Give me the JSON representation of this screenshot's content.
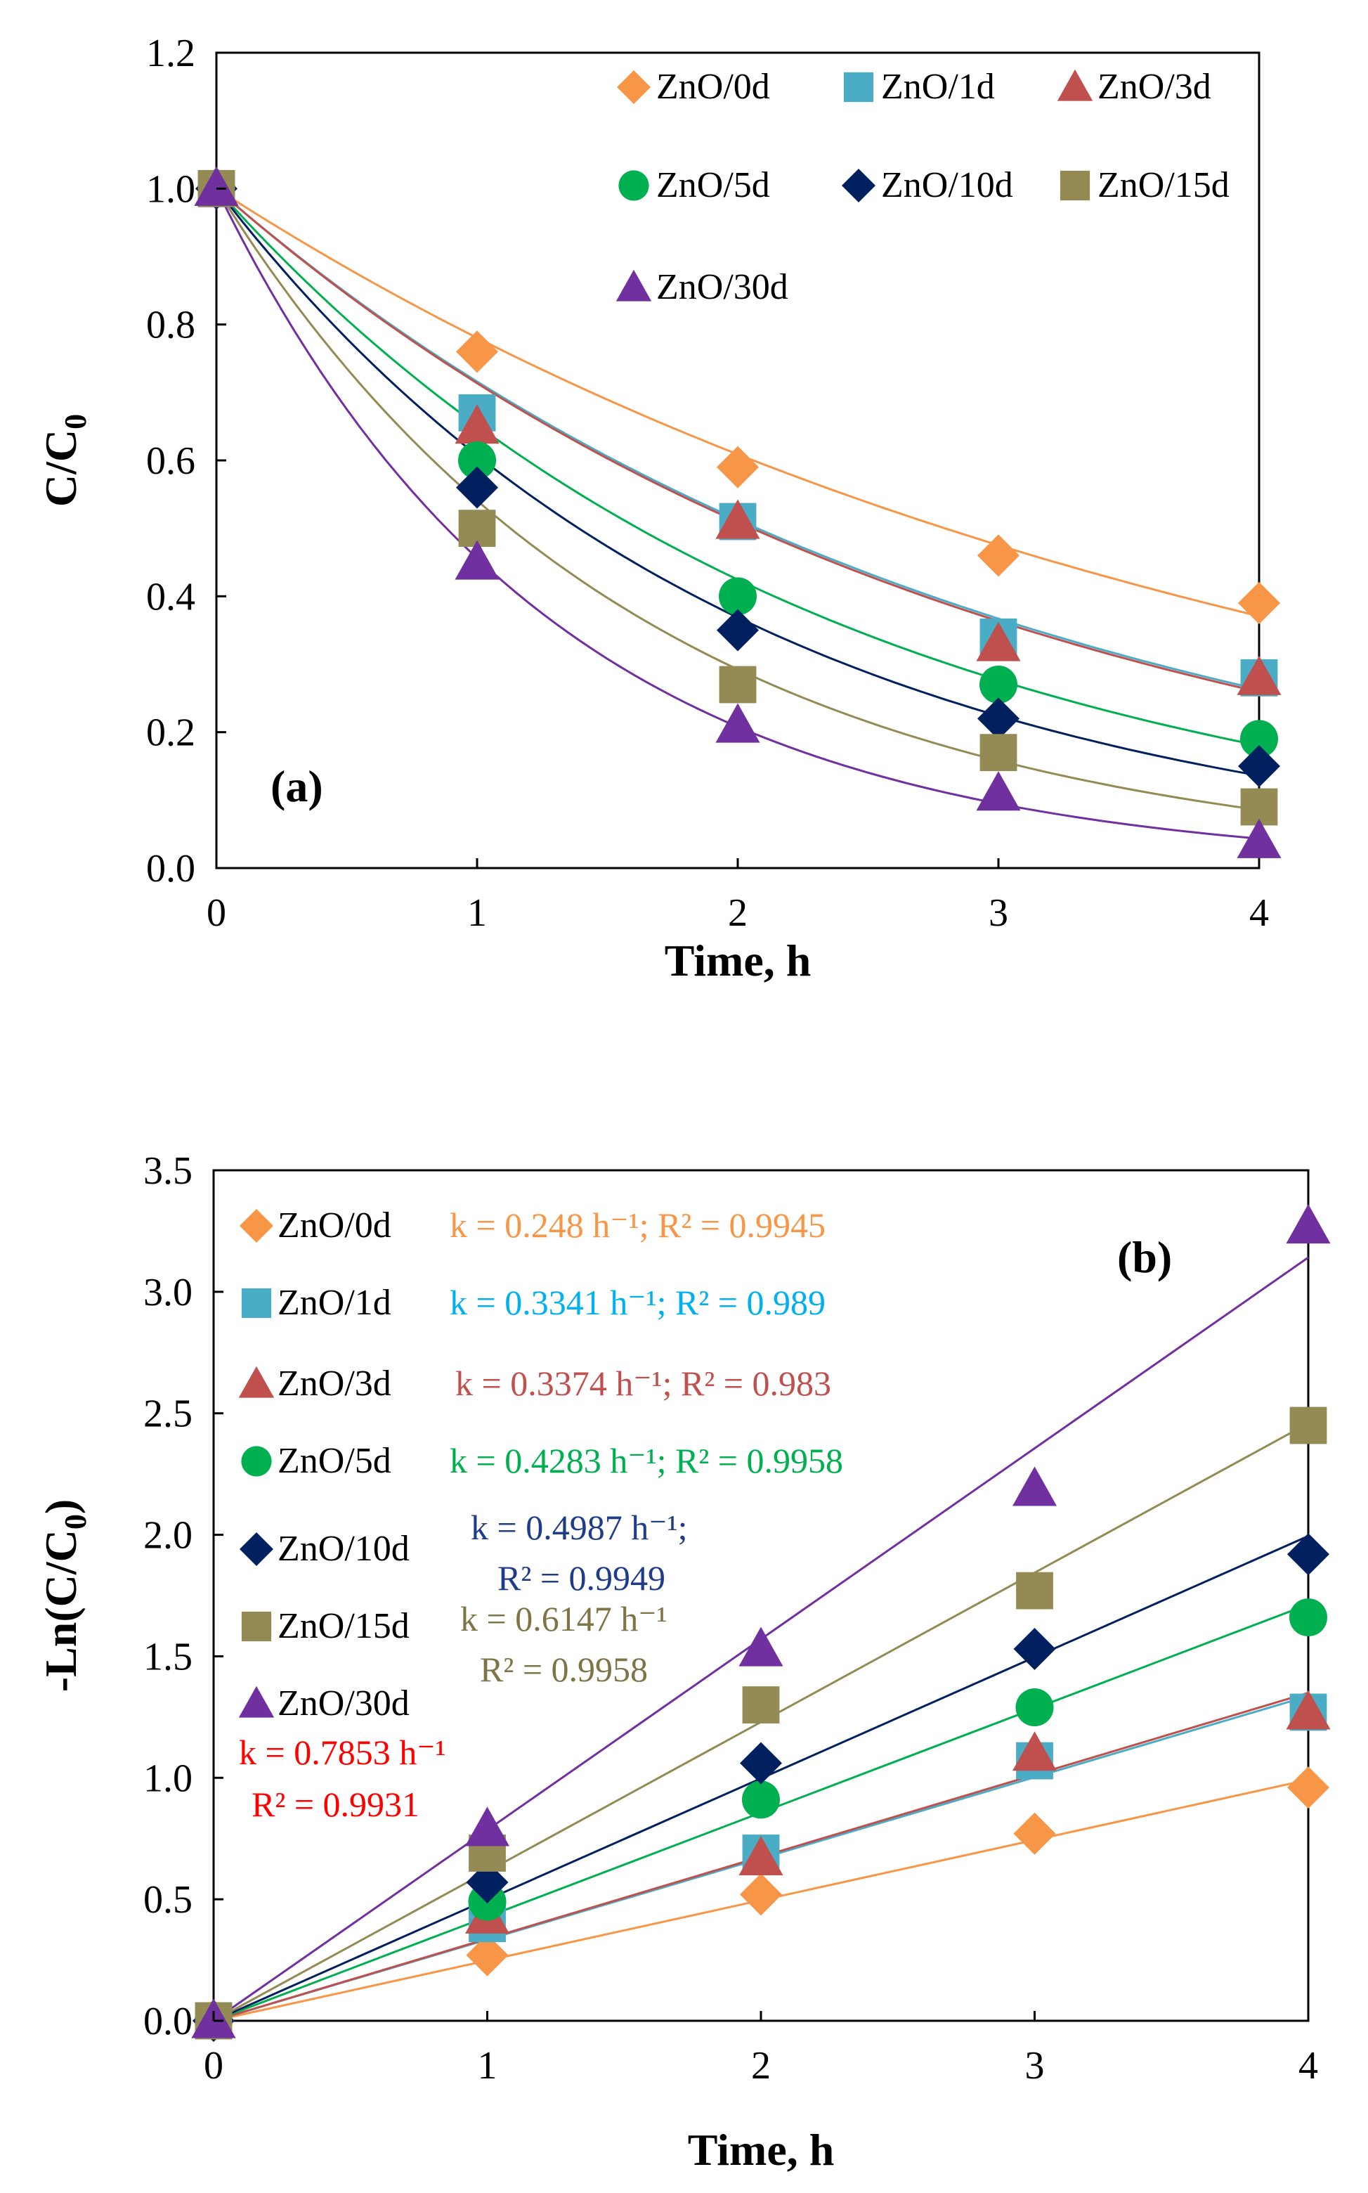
{
  "chart_data": [
    {
      "type": "scatter",
      "panel_label": "(a)",
      "xlabel": "Time, h",
      "ylabel_main": "C/C",
      "ylabel_sub": "0",
      "xlim": [
        0,
        4
      ],
      "ylim": [
        0,
        1.2
      ],
      "x_ticks": [
        "0",
        "1",
        "2",
        "3",
        "4"
      ],
      "y_ticks": [
        "0.0",
        "0.2",
        "0.4",
        "0.6",
        "0.8",
        "1.0",
        "1.2"
      ],
      "fit": "exponential decay curves",
      "legend_position": "top-right",
      "x": [
        0,
        1,
        2,
        3,
        4
      ],
      "series": [
        {
          "name": "ZnO/0d",
          "color": "#F79646",
          "marker": "diamond",
          "k": 0.248,
          "values": [
            1.0,
            0.76,
            0.59,
            0.46,
            0.39
          ]
        },
        {
          "name": "ZnO/1d",
          "color": "#4BACC6",
          "marker": "square",
          "k": 0.3341,
          "values": [
            1.0,
            0.67,
            0.51,
            0.34,
            0.28
          ]
        },
        {
          "name": "ZnO/3d",
          "color": "#C0504D",
          "marker": "triangle",
          "k": 0.3374,
          "values": [
            1.0,
            0.65,
            0.51,
            0.33,
            0.28
          ]
        },
        {
          "name": "ZnO/5d",
          "color": "#00B050",
          "marker": "circle",
          "k": 0.4283,
          "values": [
            1.0,
            0.6,
            0.4,
            0.27,
            0.19
          ]
        },
        {
          "name": "ZnO/10d",
          "color": "#002060",
          "marker": "diamond",
          "k": 0.4987,
          "values": [
            1.0,
            0.56,
            0.35,
            0.22,
            0.15
          ]
        },
        {
          "name": "ZnO/15d",
          "color": "#948A54",
          "marker": "square",
          "k": 0.6147,
          "values": [
            1.0,
            0.5,
            0.27,
            0.17,
            0.09
          ]
        },
        {
          "name": "ZnO/30d",
          "color": "#7030A0",
          "marker": "triangle",
          "k": 0.7853,
          "values": [
            1.0,
            0.45,
            0.21,
            0.11,
            0.04
          ]
        }
      ]
    },
    {
      "type": "scatter",
      "panel_label": "(b)",
      "xlabel": "Time, h",
      "ylabel_main": "-Ln(C/C",
      "ylabel_sub": "0",
      "ylabel_end": ")",
      "xlim": [
        0,
        4
      ],
      "ylim": [
        0,
        3.5
      ],
      "x_ticks": [
        "0",
        "1",
        "2",
        "3",
        "4"
      ],
      "y_ticks": [
        "0.0",
        "0.5",
        "1.0",
        "1.5",
        "2.0",
        "2.5",
        "3.0",
        "3.5"
      ],
      "fit": "linear through origin",
      "legend_position": "top-left",
      "x": [
        0,
        1,
        2,
        3,
        4
      ],
      "series": [
        {
          "name": "ZnO/0d",
          "color": "#F79646",
          "marker": "diamond",
          "k": 0.248,
          "values": [
            0,
            0.27,
            0.52,
            0.77,
            0.96
          ],
          "eq_lines": [
            "k = 0.248 h⁻¹; R² = 0.9945"
          ],
          "eq_color": "#F79646"
        },
        {
          "name": "ZnO/1d",
          "color": "#4BACC6",
          "marker": "square",
          "k": 0.3341,
          "values": [
            0,
            0.4,
            0.69,
            1.07,
            1.27
          ],
          "eq_lines": [
            "k = 0.3341 h⁻¹; R² = 0.989"
          ],
          "eq_color": "#00B0F0"
        },
        {
          "name": "ZnO/3d",
          "color": "#C0504D",
          "marker": "triangle",
          "k": 0.3374,
          "values": [
            0,
            0.43,
            0.67,
            1.1,
            1.27
          ],
          "eq_lines": [
            "k = 0.3374 h⁻¹; R² = 0.983"
          ],
          "eq_color": "#C0504D"
        },
        {
          "name": "ZnO/5d",
          "color": "#00B050",
          "marker": "circle",
          "k": 0.4283,
          "values": [
            0,
            0.49,
            0.91,
            1.29,
            1.66
          ],
          "eq_lines": [
            "k = 0.4283 h⁻¹; R² = 0.9958"
          ],
          "eq_color": "#00B050"
        },
        {
          "name": "ZnO/10d",
          "color": "#002060",
          "marker": "diamond",
          "k": 0.4987,
          "values": [
            0,
            0.57,
            1.06,
            1.53,
            1.92
          ],
          "eq_lines": [
            "k = 0.4987 h⁻¹;",
            "R² = 0.9949"
          ],
          "eq_color": "#1F3C88"
        },
        {
          "name": "ZnO/15d",
          "color": "#948A54",
          "marker": "square",
          "k": 0.6147,
          "values": [
            0,
            0.69,
            1.3,
            1.77,
            2.45
          ],
          "eq_lines": [
            "k = 0.6147 h⁻¹",
            "R² = 0.9958"
          ],
          "eq_color": "#7F7446"
        },
        {
          "name": "ZnO/30d",
          "color": "#7030A0",
          "marker": "triangle",
          "k": 0.7853,
          "values": [
            0,
            0.79,
            1.53,
            2.19,
            3.27
          ],
          "eq_lines": [
            "k = 0.7853 h⁻¹",
            "R² = 0.9931"
          ],
          "eq_color": "#FF0000"
        }
      ]
    }
  ]
}
